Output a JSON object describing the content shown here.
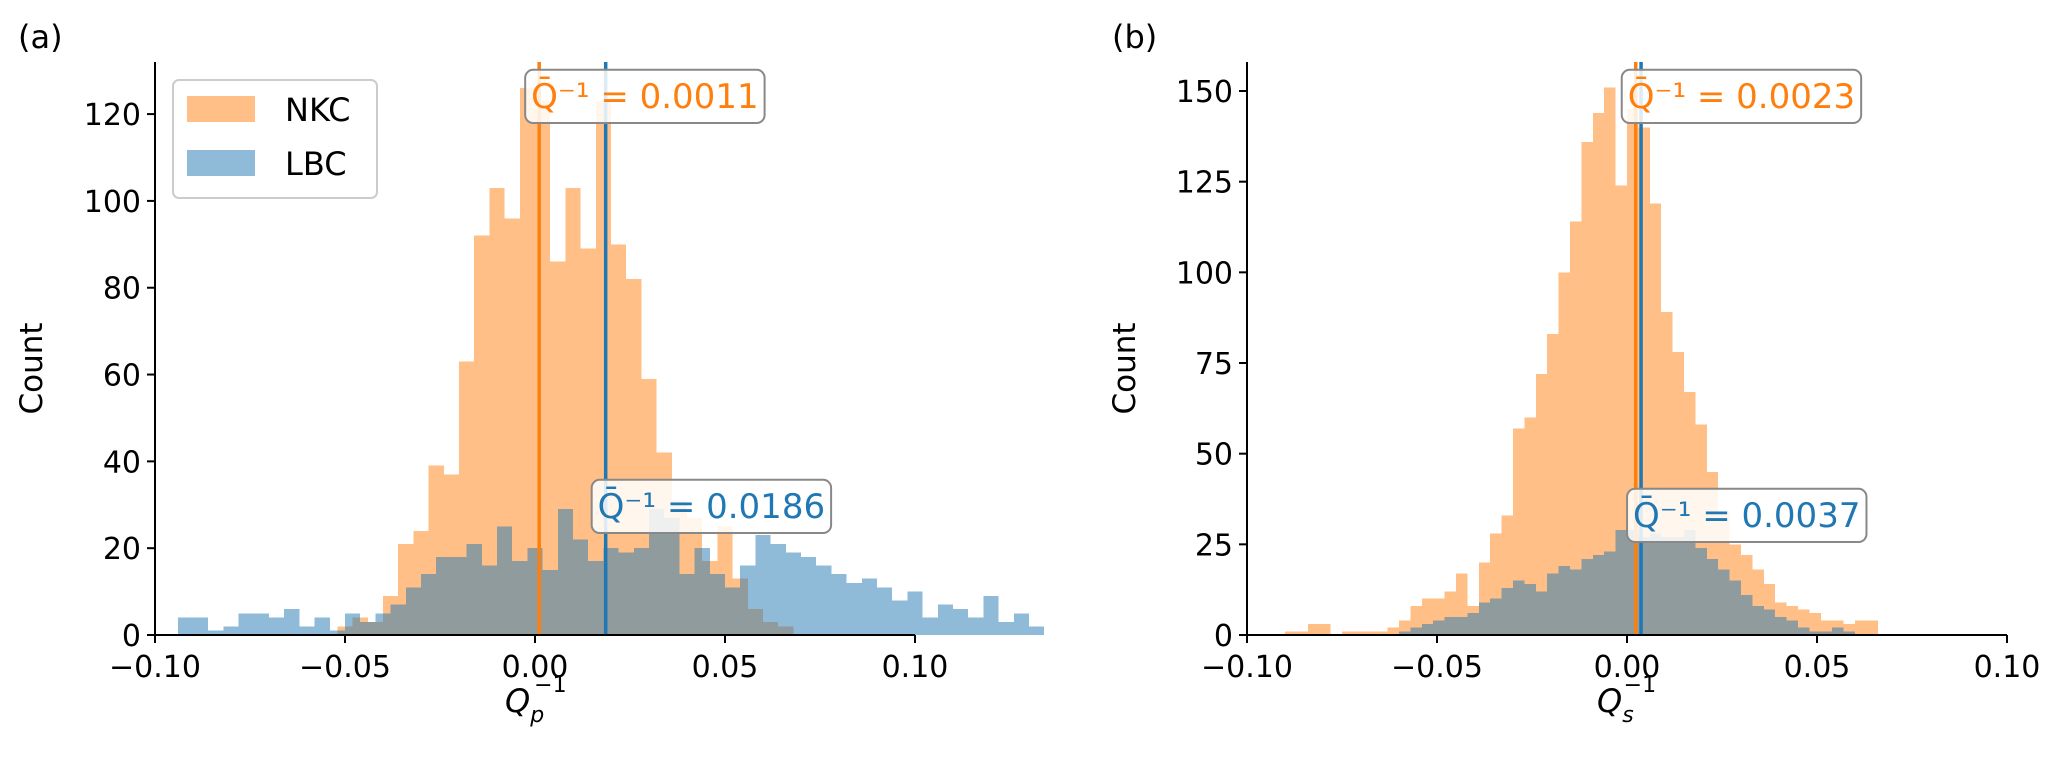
{
  "chart_data": [
    {
      "panel_label": "(a)",
      "type": "bar",
      "subtype": "overlaid-histogram",
      "xlabel": {
        "base": "Q",
        "sub": "p",
        "sup": "−1"
      },
      "ylabel": "Count",
      "xlim": [
        -0.1,
        0.1
      ],
      "ylim": [
        0,
        132
      ],
      "xticks": [
        -0.1,
        -0.05,
        0.0,
        0.05,
        0.1
      ],
      "xtick_labels": [
        "−0.10",
        "−0.05",
        "0.00",
        "0.05",
        "0.10"
      ],
      "yticks": [
        0,
        20,
        40,
        60,
        80,
        100,
        120
      ],
      "ytick_labels": [
        "0",
        "20",
        "40",
        "60",
        "80",
        "100",
        "120"
      ],
      "legend": {
        "placement": "top-left",
        "entries": [
          "NKC",
          "LBC"
        ]
      },
      "series": [
        {
          "name": "NKC",
          "color": "#ff7f0e",
          "bin_start": -0.052,
          "bin_width": 0.004,
          "values": [
            2,
            4,
            3,
            9,
            21,
            24,
            39,
            37,
            63,
            92,
            103,
            96,
            126,
            123,
            86,
            103,
            89,
            123,
            90,
            82,
            59,
            42,
            31,
            27,
            17,
            25,
            13,
            6,
            3,
            2
          ]
        },
        {
          "name": "LBC",
          "color": "#1f77b4",
          "bin_start": -0.094,
          "bin_width": 0.004,
          "values": [
            4,
            4,
            1,
            2,
            5,
            5,
            4,
            6,
            2,
            4,
            1,
            5,
            3,
            5,
            7,
            11,
            14,
            18,
            18,
            21,
            16,
            25,
            17,
            20,
            15,
            29,
            22,
            17,
            20,
            19,
            20,
            29,
            27,
            14,
            20,
            14,
            11,
            16,
            23,
            21,
            19,
            18,
            16,
            14,
            12,
            13,
            11,
            8,
            10,
            4,
            7,
            6,
            4,
            9,
            3,
            5,
            2
          ]
        }
      ],
      "mean_lines": [
        {
          "series": "NKC",
          "x": 0.0011,
          "label": "Q̄⁻¹ = 0.0011",
          "color": "#ff7f0e"
        },
        {
          "series": "LBC",
          "x": 0.0186,
          "label": "Q̄⁻¹ = 0.0186",
          "color": "#1f77b4"
        }
      ]
    },
    {
      "panel_label": "(b)",
      "type": "bar",
      "subtype": "overlaid-histogram",
      "xlabel": {
        "base": "Q",
        "sub": "s",
        "sup": "−1"
      },
      "ylabel": "Count",
      "xlim": [
        -0.1,
        0.1
      ],
      "ylim": [
        0,
        158
      ],
      "xticks": [
        -0.1,
        -0.05,
        0.0,
        0.05,
        0.1
      ],
      "xtick_labels": [
        "−0.10",
        "−0.05",
        "0.00",
        "0.05",
        "0.10"
      ],
      "yticks": [
        0,
        25,
        50,
        75,
        100,
        125,
        150
      ],
      "ytick_labels": [
        "0",
        "25",
        "50",
        "75",
        "100",
        "125",
        "150"
      ],
      "series": [
        {
          "name": "NKC",
          "color": "#ff7f0e",
          "bin_start": -0.09,
          "bin_width": 0.003,
          "values": [
            1,
            1,
            3,
            3,
            0,
            1,
            1,
            1,
            1,
            2,
            4,
            8,
            10,
            10,
            12,
            17,
            8,
            20,
            28,
            33,
            57,
            60,
            72,
            83,
            100,
            114,
            136,
            144,
            151,
            124,
            145,
            140,
            119,
            89,
            78,
            67,
            58,
            45,
            34,
            25,
            22,
            18,
            14,
            9,
            8,
            7,
            6,
            4,
            4,
            3,
            4,
            4
          ]
        },
        {
          "name": "LBC",
          "color": "#1f77b4",
          "bin_start": -0.06,
          "bin_width": 0.003,
          "values": [
            1,
            2,
            3,
            4,
            5,
            5,
            6,
            9,
            10,
            13,
            15,
            14,
            12,
            17,
            19,
            18,
            21,
            22,
            23,
            29,
            29,
            27,
            28,
            27,
            27,
            29,
            24,
            21,
            18,
            15,
            11,
            8,
            7,
            5,
            4,
            2,
            1,
            1,
            2,
            1
          ]
        }
      ],
      "mean_lines": [
        {
          "series": "NKC",
          "x": 0.0023,
          "label": "Q̄⁻¹ = 0.0023",
          "color": "#ff7f0e"
        },
        {
          "series": "LBC",
          "x": 0.0037,
          "label": "Q̄⁻¹ = 0.0037",
          "color": "#1f77b4"
        }
      ]
    }
  ]
}
